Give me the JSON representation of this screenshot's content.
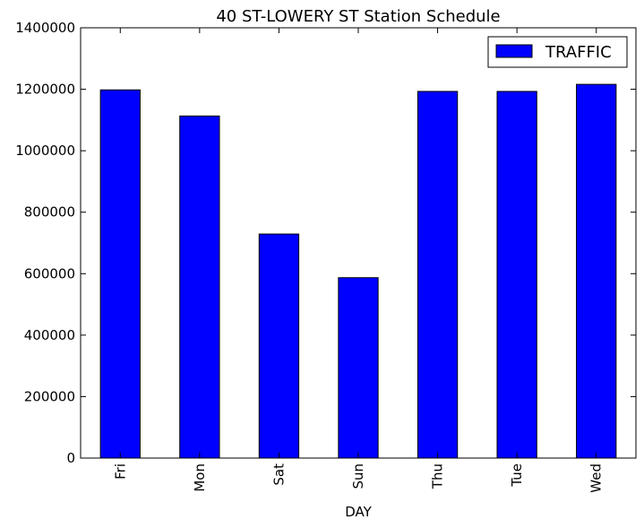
{
  "chart_data": {
    "type": "bar",
    "title": "40 ST-LOWERY ST Station Schedule",
    "xlabel": "DAY",
    "ylabel": "",
    "categories": [
      "Fri",
      "Mon",
      "Sat",
      "Sun",
      "Thu",
      "Tue",
      "Wed"
    ],
    "series": [
      {
        "name": "TRAFFIC",
        "values": [
          1198000,
          1113000,
          729000,
          587000,
          1193000,
          1193000,
          1216000
        ],
        "color": "#0000ff"
      }
    ],
    "ylim": [
      0,
      1400000
    ],
    "yticks": [
      0,
      200000,
      400000,
      600000,
      800000,
      1000000,
      1200000,
      1400000
    ],
    "ytick_labels": [
      "0",
      "200000",
      "400000",
      "600000",
      "800000",
      "1000000",
      "1200000",
      "1400000"
    ],
    "grid": false,
    "legend_position": "top-right"
  }
}
